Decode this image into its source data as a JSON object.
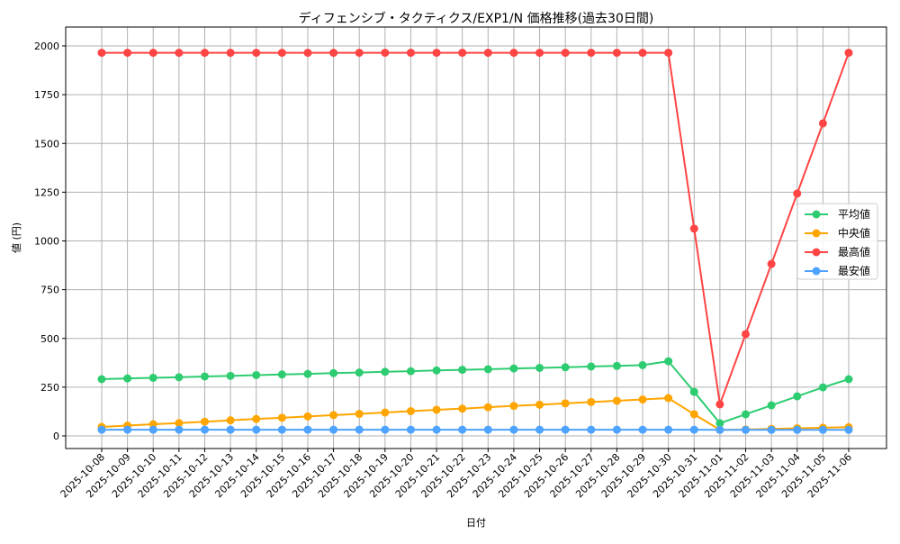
{
  "chart_data": {
    "type": "line",
    "title": "ディフェンシブ・タクティクス/EXP1/N 価格推移(過去30日間)",
    "xlabel": "日付",
    "ylabel": "値 (円)",
    "ylim": [
      -60,
      2050
    ],
    "yticks": [
      0,
      250,
      500,
      750,
      1000,
      1250,
      1500,
      1750,
      2000
    ],
    "grid": true,
    "legend_position": "center-right",
    "x": [
      "2025-10-08",
      "2025-10-09",
      "2025-10-10",
      "2025-10-11",
      "2025-10-12",
      "2025-10-13",
      "2025-10-14",
      "2025-10-15",
      "2025-10-16",
      "2025-10-17",
      "2025-10-18",
      "2025-10-19",
      "2025-10-20",
      "2025-10-21",
      "2025-10-22",
      "2025-10-23",
      "2025-10-24",
      "2025-10-25",
      "2025-10-26",
      "2025-10-27",
      "2025-10-28",
      "2025-10-29",
      "2025-10-30",
      "2025-10-31",
      "2025-11-01",
      "2025-11-02",
      "2025-11-03",
      "2025-11-04",
      "2025-11-05",
      "2025-11-06"
    ],
    "series": [
      {
        "name": "平均値",
        "color": "#2ecc71",
        "values": [
          291,
          295,
          298,
          301,
          305,
          308,
          312,
          315,
          318,
          322,
          325,
          329,
          332,
          336,
          339,
          342,
          346,
          349,
          352,
          356,
          359,
          363,
          383,
          226,
          65,
          111,
          157,
          203,
          249,
          291
        ]
      },
      {
        "name": "中央値",
        "color": "#ffa500",
        "values": [
          46,
          53,
          60,
          66,
          73,
          80,
          87,
          93,
          100,
          107,
          113,
          120,
          127,
          134,
          140,
          147,
          154,
          160,
          167,
          174,
          180,
          187,
          194,
          111,
          31,
          33,
          36,
          39,
          42,
          45
        ]
      },
      {
        "name": "最高値",
        "color": "#ff4444",
        "values": [
          1965,
          1965,
          1965,
          1965,
          1965,
          1965,
          1965,
          1965,
          1965,
          1965,
          1965,
          1965,
          1965,
          1965,
          1965,
          1965,
          1965,
          1965,
          1965,
          1965,
          1965,
          1965,
          1965,
          1063,
          162,
          522,
          882,
          1243,
          1603,
          1965
        ]
      },
      {
        "name": "最安値",
        "color": "#4da3ff",
        "values": [
          32,
          32,
          32,
          32,
          32,
          32,
          32,
          32,
          32,
          32,
          32,
          32,
          32,
          32,
          32,
          32,
          32,
          32,
          32,
          32,
          32,
          32,
          32,
          32,
          31,
          31,
          31,
          31,
          31,
          31
        ]
      }
    ]
  }
}
